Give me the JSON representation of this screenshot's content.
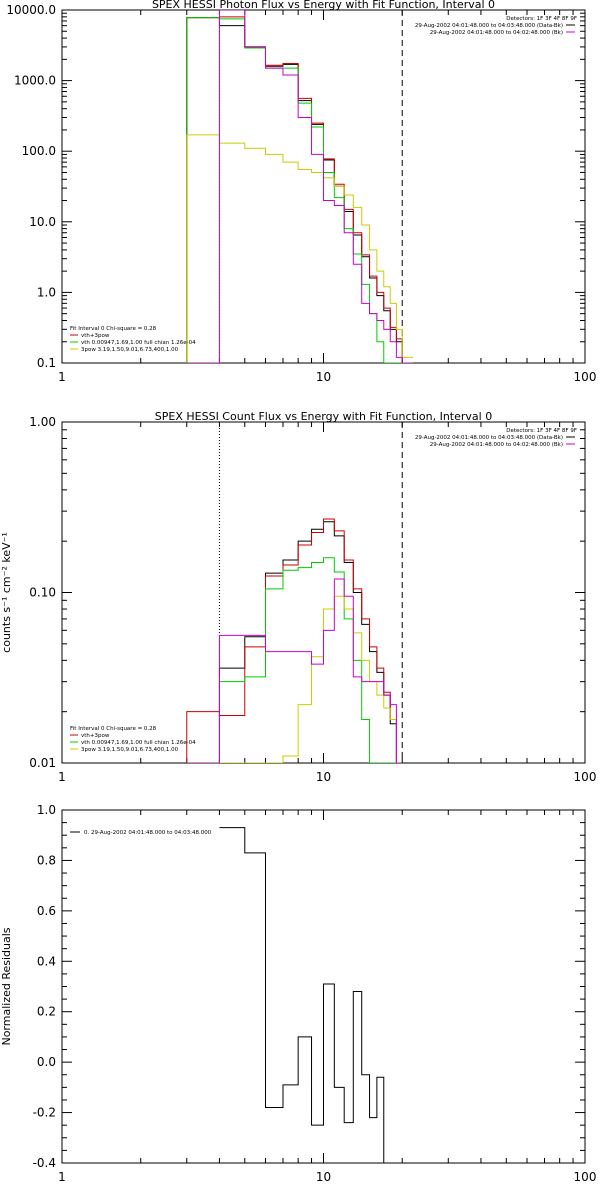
{
  "chart_data": [
    {
      "type": "line",
      "title": "SPEX HESSI Photon Flux vs Energy with Fit Function, Interval 0",
      "xscale": "log",
      "yscale": "log",
      "xlim": [
        1,
        100
      ],
      "ylim": [
        0.1,
        10000
      ],
      "x_ticks": [
        "1",
        "10",
        "100"
      ],
      "y_ticks": [
        "0.1",
        "1.0",
        "10.0",
        "100.0",
        "1000.0",
        "10000.0"
      ],
      "detectors_label": "Detectors: 1F 3F 4F 8F 9F",
      "header_lines": [
        {
          "text": "29-Aug-2002 04:01:48.000 to 04:03:48.000 (Data-Bk)",
          "color": "#000000"
        },
        {
          "text": "29-Aug-2002 04:01:48.000 to 04:02:48.000 (Bk)",
          "color": "#cc00cc"
        }
      ],
      "fit_legend": {
        "title": "Fit Interval 0   Chi-square = 0.28",
        "entries": [
          {
            "text": "vth+3pow",
            "color": "#cc0000"
          },
          {
            "text": "vth 0.00947,1.69,1.00  full chian 1.26e-04",
            "color": "#00cc00"
          },
          {
            "text": "3pow 3.19,1.50,9.01,6.73,400,1.00",
            "color": "#cccc00"
          }
        ]
      },
      "vlines": [
        {
          "x": 4.0,
          "style": "dotted",
          "color": "#cc00cc"
        },
        {
          "x": 20.0,
          "style": "dashed",
          "color": "#000000"
        }
      ],
      "bin_edges": [
        3,
        4,
        5,
        6,
        7,
        8,
        9,
        10,
        11,
        12,
        13,
        14,
        15,
        16,
        17,
        18,
        19,
        20,
        22
      ],
      "series": [
        {
          "color": "#000000",
          "values": [
            7800,
            6000,
            3000,
            1600,
            1700,
            520,
            240,
            75,
            32,
            14,
            6.5,
            3.2,
            1.6,
            0.9,
            0.55,
            0.3,
            0.2,
            0.1
          ]
        },
        {
          "color": "#cc0000",
          "values": [
            7800,
            8000,
            3000,
            1650,
            1750,
            560,
            250,
            78,
            34,
            15,
            7,
            3.4,
            1.7,
            1.0,
            0.6,
            0.32,
            0.22,
            0.1
          ]
        },
        {
          "color": "#00cc00",
          "values": [
            7800,
            7500,
            2900,
            1500,
            1500,
            480,
            220,
            50,
            22,
            8,
            3.5,
            1.3,
            0.5,
            0.2,
            0.1,
            0.1,
            0.1,
            0.1
          ]
        },
        {
          "color": "#cccc00",
          "values": [
            170,
            130,
            110,
            90,
            70,
            55,
            50,
            42,
            32,
            24,
            16,
            9,
            4,
            2,
            1.2,
            0.7,
            0.3,
            0.12
          ]
        },
        {
          "color": "#cc00cc",
          "values": [
            0.1,
            10000,
            3000,
            1500,
            1200,
            300,
            90,
            20,
            17,
            7,
            2.5,
            0.7,
            0.5,
            0.4,
            0.3,
            0.2,
            0.12,
            0.1
          ]
        }
      ]
    },
    {
      "type": "line",
      "title": "SPEX HESSI Count Flux vs Energy with Fit Function, Interval 0",
      "ylabel": "counts s⁻¹ cm⁻² keV⁻¹",
      "xscale": "log",
      "yscale": "log",
      "xlim": [
        1,
        100
      ],
      "ylim": [
        0.01,
        1.0
      ],
      "x_ticks": [
        "1",
        "10",
        "100"
      ],
      "y_ticks": [
        "0.01",
        "0.10",
        "1.00"
      ],
      "detectors_label": "Detectors: 1F 3F 4F 8F 9F",
      "header_lines": [
        {
          "text": "29-Aug-2002 04:01:48.000 to 04:03:48.000 (Data-Bk)",
          "color": "#000000"
        },
        {
          "text": "29-Aug-2002 04:01:48.000 to 04:02:48.000 (Bk)",
          "color": "#cc00cc"
        }
      ],
      "fit_legend": {
        "title": "Fit Interval 0   Chi-square = 0.28",
        "entries": [
          {
            "text": "vth+3pow",
            "color": "#cc0000"
          },
          {
            "text": "vth 0.00947,1.69,1.00  full chian 1.26e-04",
            "color": "#00cc00"
          },
          {
            "text": "3pow 3.19,1.50,9.01,6.73,400,1.00",
            "color": "#cccc00"
          }
        ]
      },
      "vlines": [
        {
          "x": 4.0,
          "style": "dotted",
          "color": "#000000"
        },
        {
          "x": 20.0,
          "style": "dashed",
          "color": "#000000"
        }
      ],
      "bin_edges": [
        3,
        4,
        5,
        6,
        7,
        8,
        9,
        10,
        11,
        12,
        13,
        14,
        15,
        16,
        17,
        18,
        19,
        20
      ],
      "series": [
        {
          "color": "#000000",
          "values": [
            0.01,
            0.036,
            0.055,
            0.13,
            0.155,
            0.2,
            0.235,
            0.26,
            0.215,
            0.15,
            0.1,
            0.065,
            0.045,
            0.034,
            0.025,
            0.017,
            0.01
          ]
        },
        {
          "color": "#cc0000",
          "values": [
            0.02,
            0.019,
            0.048,
            0.125,
            0.145,
            0.19,
            0.225,
            0.27,
            0.23,
            0.155,
            0.105,
            0.07,
            0.048,
            0.036,
            0.026,
            0.018,
            0.01
          ]
        },
        {
          "color": "#00cc00",
          "values": [
            0.01,
            0.03,
            0.032,
            0.105,
            0.135,
            0.14,
            0.15,
            0.16,
            0.132,
            0.07,
            0.04,
            0.018,
            0.01,
            0.01,
            0.01,
            0.01,
            0.01
          ]
        },
        {
          "color": "#cccc00",
          "values": [
            0.01,
            0.01,
            0.01,
            0.01,
            0.011,
            0.022,
            0.042,
            0.08,
            0.095,
            0.08,
            0.058,
            0.04,
            0.03,
            0.025,
            0.021,
            0.018,
            0.01
          ]
        },
        {
          "color": "#cc00cc",
          "values": [
            0.01,
            0.056,
            0.056,
            0.045,
            0.045,
            0.045,
            0.038,
            0.06,
            0.12,
            0.095,
            0.032,
            0.03,
            0.03,
            0.03,
            0.025,
            0.022,
            0.01
          ]
        }
      ]
    },
    {
      "type": "line",
      "ylabel": "Normalized Residuals",
      "xscale": "log",
      "yscale": "linear",
      "xlim": [
        1,
        100
      ],
      "ylim": [
        -0.4,
        1.0
      ],
      "x_ticks": [
        "1",
        "10",
        "100"
      ],
      "y_ticks": [
        "-0.4",
        "-0.2",
        "0.0",
        "0.2",
        "0.4",
        "0.6",
        "0.8",
        "1.0"
      ],
      "legend": {
        "text": "0. 29-Aug-2002 04:01:48.000 to 04:03:48.000",
        "color": "#000000"
      },
      "bin_edges": [
        4,
        5,
        6,
        7,
        8,
        9,
        10,
        11,
        12,
        13,
        14,
        15,
        16,
        17,
        18,
        19,
        20
      ],
      "series": [
        {
          "color": "#000000",
          "values": [
            0.93,
            0.83,
            -0.18,
            -0.09,
            0.1,
            -0.25,
            0.31,
            -0.1,
            -0.24,
            0.28,
            -0.05,
            -0.22,
            -0.06,
            -0.4,
            -0.4,
            -0.4
          ]
        }
      ]
    }
  ]
}
